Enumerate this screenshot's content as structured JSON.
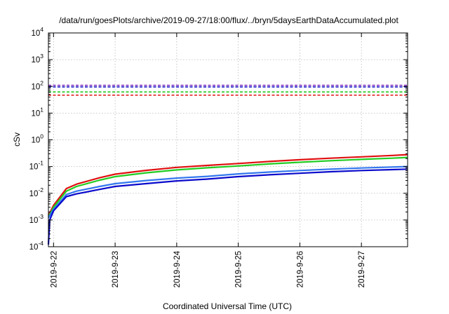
{
  "chart_data": {
    "type": "line",
    "title": "/data/run/goesPlots/archive/2019-09-27/18:00/flux/../bryn/5daysEarthDataAccumulated.plot",
    "xlabel": "Coordinated Universal Time (UTC)",
    "ylabel": "cSv",
    "xlim": [
      "2019-09-21T22:00",
      "2019-09-27T18:00"
    ],
    "ylim": [
      0.0001,
      10000
    ],
    "y_scale": "log",
    "grid": true,
    "x_ticks": [
      "2019-9-22",
      "2019-9-23",
      "2019-9-24",
      "2019-9-25",
      "2019-9-26",
      "2019-9-27"
    ],
    "y_ticks": [
      {
        "base": "10",
        "exp": "-4"
      },
      {
        "base": "10",
        "exp": "-3"
      },
      {
        "base": "10",
        "exp": "-2"
      },
      {
        "base": "10",
        "exp": "-1"
      },
      {
        "base": "10",
        "exp": "0"
      },
      {
        "base": "10",
        "exp": "1"
      },
      {
        "base": "10",
        "exp": "2"
      },
      {
        "base": "10",
        "exp": "3"
      },
      {
        "base": "10",
        "exp": "4"
      }
    ],
    "thresholds": [
      {
        "color": "#7f2fbf",
        "value": 110
      },
      {
        "color": "#1f1fcf",
        "value": 95
      },
      {
        "color": "#22cc22",
        "value": 62
      },
      {
        "color": "#e01010",
        "value": 47
      }
    ],
    "series": [
      {
        "color": "#e01010",
        "x": [
          "2019-09-21T22:00",
          "2019-09-22T00:00",
          "2019-09-22T05:00",
          "2019-09-22T09:00",
          "2019-09-22T18:00",
          "2019-09-23T00:00",
          "2019-09-23T12:00",
          "2019-09-24T00:00",
          "2019-09-24T12:00",
          "2019-09-25T00:00",
          "2019-09-25T12:00",
          "2019-09-26T00:00",
          "2019-09-26T12:00",
          "2019-09-27T00:00",
          "2019-09-27T12:00",
          "2019-09-27T18:00"
        ],
        "y": [
          0.0015,
          0.0035,
          0.015,
          0.022,
          0.038,
          0.052,
          0.072,
          0.093,
          0.11,
          0.13,
          0.155,
          0.18,
          0.205,
          0.23,
          0.26,
          0.28
        ]
      },
      {
        "color": "#22cc22",
        "x": [
          "2019-09-21T22:00",
          "2019-09-22T00:00",
          "2019-09-22T05:00",
          "2019-09-22T09:00",
          "2019-09-22T18:00",
          "2019-09-23T00:00",
          "2019-09-23T12:00",
          "2019-09-24T00:00",
          "2019-09-24T12:00",
          "2019-09-25T00:00",
          "2019-09-25T12:00",
          "2019-09-26T00:00",
          "2019-09-26T12:00",
          "2019-09-27T00:00",
          "2019-09-27T12:00",
          "2019-09-27T18:00"
        ],
        "y": [
          0.0013,
          0.003,
          0.012,
          0.018,
          0.031,
          0.042,
          0.058,
          0.075,
          0.09,
          0.105,
          0.125,
          0.145,
          0.165,
          0.185,
          0.205,
          0.22
        ]
      },
      {
        "color": "#3377ee",
        "x": [
          "2019-09-21T22:00",
          "2019-09-22T00:00",
          "2019-09-22T05:00",
          "2019-09-22T09:00",
          "2019-09-22T18:00",
          "2019-09-23T00:00",
          "2019-09-23T12:00",
          "2019-09-24T00:00",
          "2019-09-24T12:00",
          "2019-09-25T00:00",
          "2019-09-25T12:00",
          "2019-09-26T00:00",
          "2019-09-26T12:00",
          "2019-09-27T00:00",
          "2019-09-27T12:00",
          "2019-09-27T18:00"
        ],
        "y": [
          0.0012,
          0.0025,
          0.009,
          0.012,
          0.018,
          0.023,
          0.03,
          0.037,
          0.043,
          0.053,
          0.062,
          0.071,
          0.08,
          0.088,
          0.096,
          0.1
        ]
      },
      {
        "color": "#0a0acc",
        "x": [
          "2019-09-21T22:00",
          "2019-09-21T22:30",
          "2019-09-22T00:00",
          "2019-09-22T05:00",
          "2019-09-22T09:00",
          "2019-09-22T18:00",
          "2019-09-23T00:00",
          "2019-09-23T12:00",
          "2019-09-24T00:00",
          "2019-09-24T12:00",
          "2019-09-25T00:00",
          "2019-09-25T12:00",
          "2019-09-26T00:00",
          "2019-09-26T12:00",
          "2019-09-27T00:00",
          "2019-09-27T12:00",
          "2019-09-27T18:00"
        ],
        "y": [
          0.00012,
          0.001,
          0.0022,
          0.0075,
          0.0095,
          0.014,
          0.018,
          0.023,
          0.029,
          0.034,
          0.042,
          0.049,
          0.056,
          0.064,
          0.071,
          0.077,
          0.08
        ]
      }
    ]
  }
}
